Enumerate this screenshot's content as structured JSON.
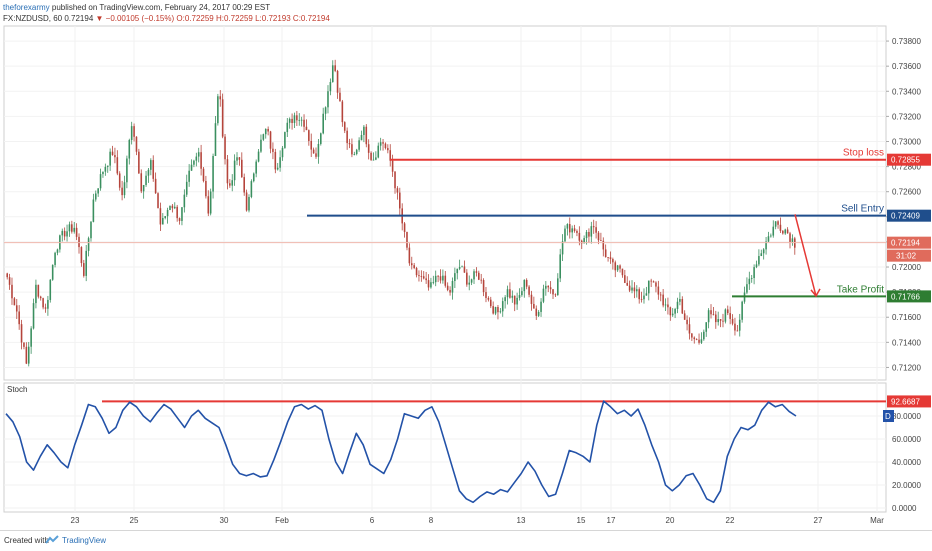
{
  "header": {
    "author": "theforexarmy",
    "published": " published on TradingView.com, February 24, 2017 00:29 EST",
    "symbol_line": "FX:NZDUSD, 60  0.72194",
    "change": "▼ −0.00105 (−0.15%)",
    "ohlc": "O:0.72259 H:0.72259 L:0.72193 C:0.72194"
  },
  "footer": {
    "created_with": "Created with",
    "brand": "TradingView"
  },
  "colors": {
    "up": "#3a8f5f",
    "down": "#b5443b",
    "stop": "#e53935",
    "entry": "#1f4e8c",
    "take": "#2e7d32",
    "stoch": "#2352a8",
    "price_line": "#f0b8ae"
  },
  "chart_data": [
    {
      "type": "candlestick",
      "symbol": "FX:NZDUSD",
      "interval": "60",
      "xticks": [
        "23",
        "25",
        "30",
        "Feb",
        "6",
        "8",
        "13",
        "15",
        "17",
        "20",
        "22",
        "27",
        "Mar"
      ],
      "yticks": [
        "0.73800",
        "0.73600",
        "0.73400",
        "0.73200",
        "0.73000",
        "0.72800",
        "0.72600",
        "0.72400",
        "0.72200",
        "0.72000",
        "0.71800",
        "0.71600",
        "0.71400",
        "0.71200"
      ],
      "ylim": [
        0.711,
        0.7392
      ],
      "close_anchors": [
        0.7192,
        0.7165,
        0.7122,
        0.7185,
        0.7165,
        0.7215,
        0.7228,
        0.7232,
        0.7195,
        0.7255,
        0.7278,
        0.7292,
        0.7255,
        0.7318,
        0.7262,
        0.7282,
        0.7232,
        0.7252,
        0.7238,
        0.7275,
        0.7292,
        0.7242,
        0.7345,
        0.726,
        0.729,
        0.7245,
        0.7292,
        0.731,
        0.7278,
        0.731,
        0.7322,
        0.7315,
        0.7285,
        0.7325,
        0.7365,
        0.731,
        0.7285,
        0.7312,
        0.7285,
        0.7302,
        0.7282,
        0.724,
        0.7198,
        0.7192,
        0.7182,
        0.7195,
        0.7178,
        0.7202,
        0.7188,
        0.7195,
        0.7175,
        0.7162,
        0.7182,
        0.717,
        0.719,
        0.7158,
        0.7188,
        0.7178,
        0.723,
        0.7232,
        0.722,
        0.7235,
        0.7215,
        0.72,
        0.7195,
        0.7182,
        0.7175,
        0.7188,
        0.7178,
        0.716,
        0.7175,
        0.7145,
        0.714,
        0.7162,
        0.7155,
        0.7165,
        0.715,
        0.7185,
        0.7205,
        0.722,
        0.7235,
        0.723,
        0.7219
      ],
      "levels": [
        {
          "name": "Stop loss",
          "value": "0.72855",
          "price": 0.72855
        },
        {
          "name": "Sell Entry",
          "value": "0.72409",
          "price": 0.72409
        },
        {
          "name": "Take Profit",
          "value": "0.71766",
          "price": 0.71766
        }
      ],
      "last_price": {
        "value": "0.72194",
        "price": 0.72194,
        "countdown": "31:02"
      },
      "projection": {
        "from": 0.7242,
        "to": 0.7177
      }
    },
    {
      "type": "line",
      "title": "Stoch",
      "yticks": [
        "80.0000",
        "60.0000",
        "40.0000",
        "20.0000",
        "0.0000"
      ],
      "ylim": [
        0,
        100
      ],
      "level": {
        "value": "92.6687",
        "number": 92.6687
      },
      "series_badge": "D",
      "values": [
        82,
        75,
        62,
        40,
        33,
        45,
        55,
        48,
        40,
        35,
        55,
        72,
        90,
        88,
        78,
        65,
        70,
        85,
        92,
        88,
        80,
        75,
        83,
        90,
        86,
        78,
        70,
        80,
        85,
        78,
        74,
        70,
        55,
        38,
        30,
        28,
        30,
        27,
        28,
        42,
        58,
        75,
        88,
        90,
        86,
        89,
        85,
        60,
        40,
        30,
        48,
        65,
        55,
        38,
        34,
        30,
        42,
        60,
        82,
        80,
        78,
        85,
        88,
        75,
        55,
        35,
        15,
        8,
        5,
        10,
        14,
        12,
        16,
        14,
        22,
        30,
        40,
        32,
        20,
        10,
        12,
        30,
        50,
        48,
        45,
        40,
        72,
        93,
        88,
        82,
        85,
        80,
        86,
        72,
        55,
        40,
        20,
        15,
        20,
        28,
        30,
        20,
        8,
        5,
        15,
        45,
        60,
        70,
        68,
        72,
        85,
        92,
        88,
        90,
        84,
        80
      ]
    }
  ]
}
